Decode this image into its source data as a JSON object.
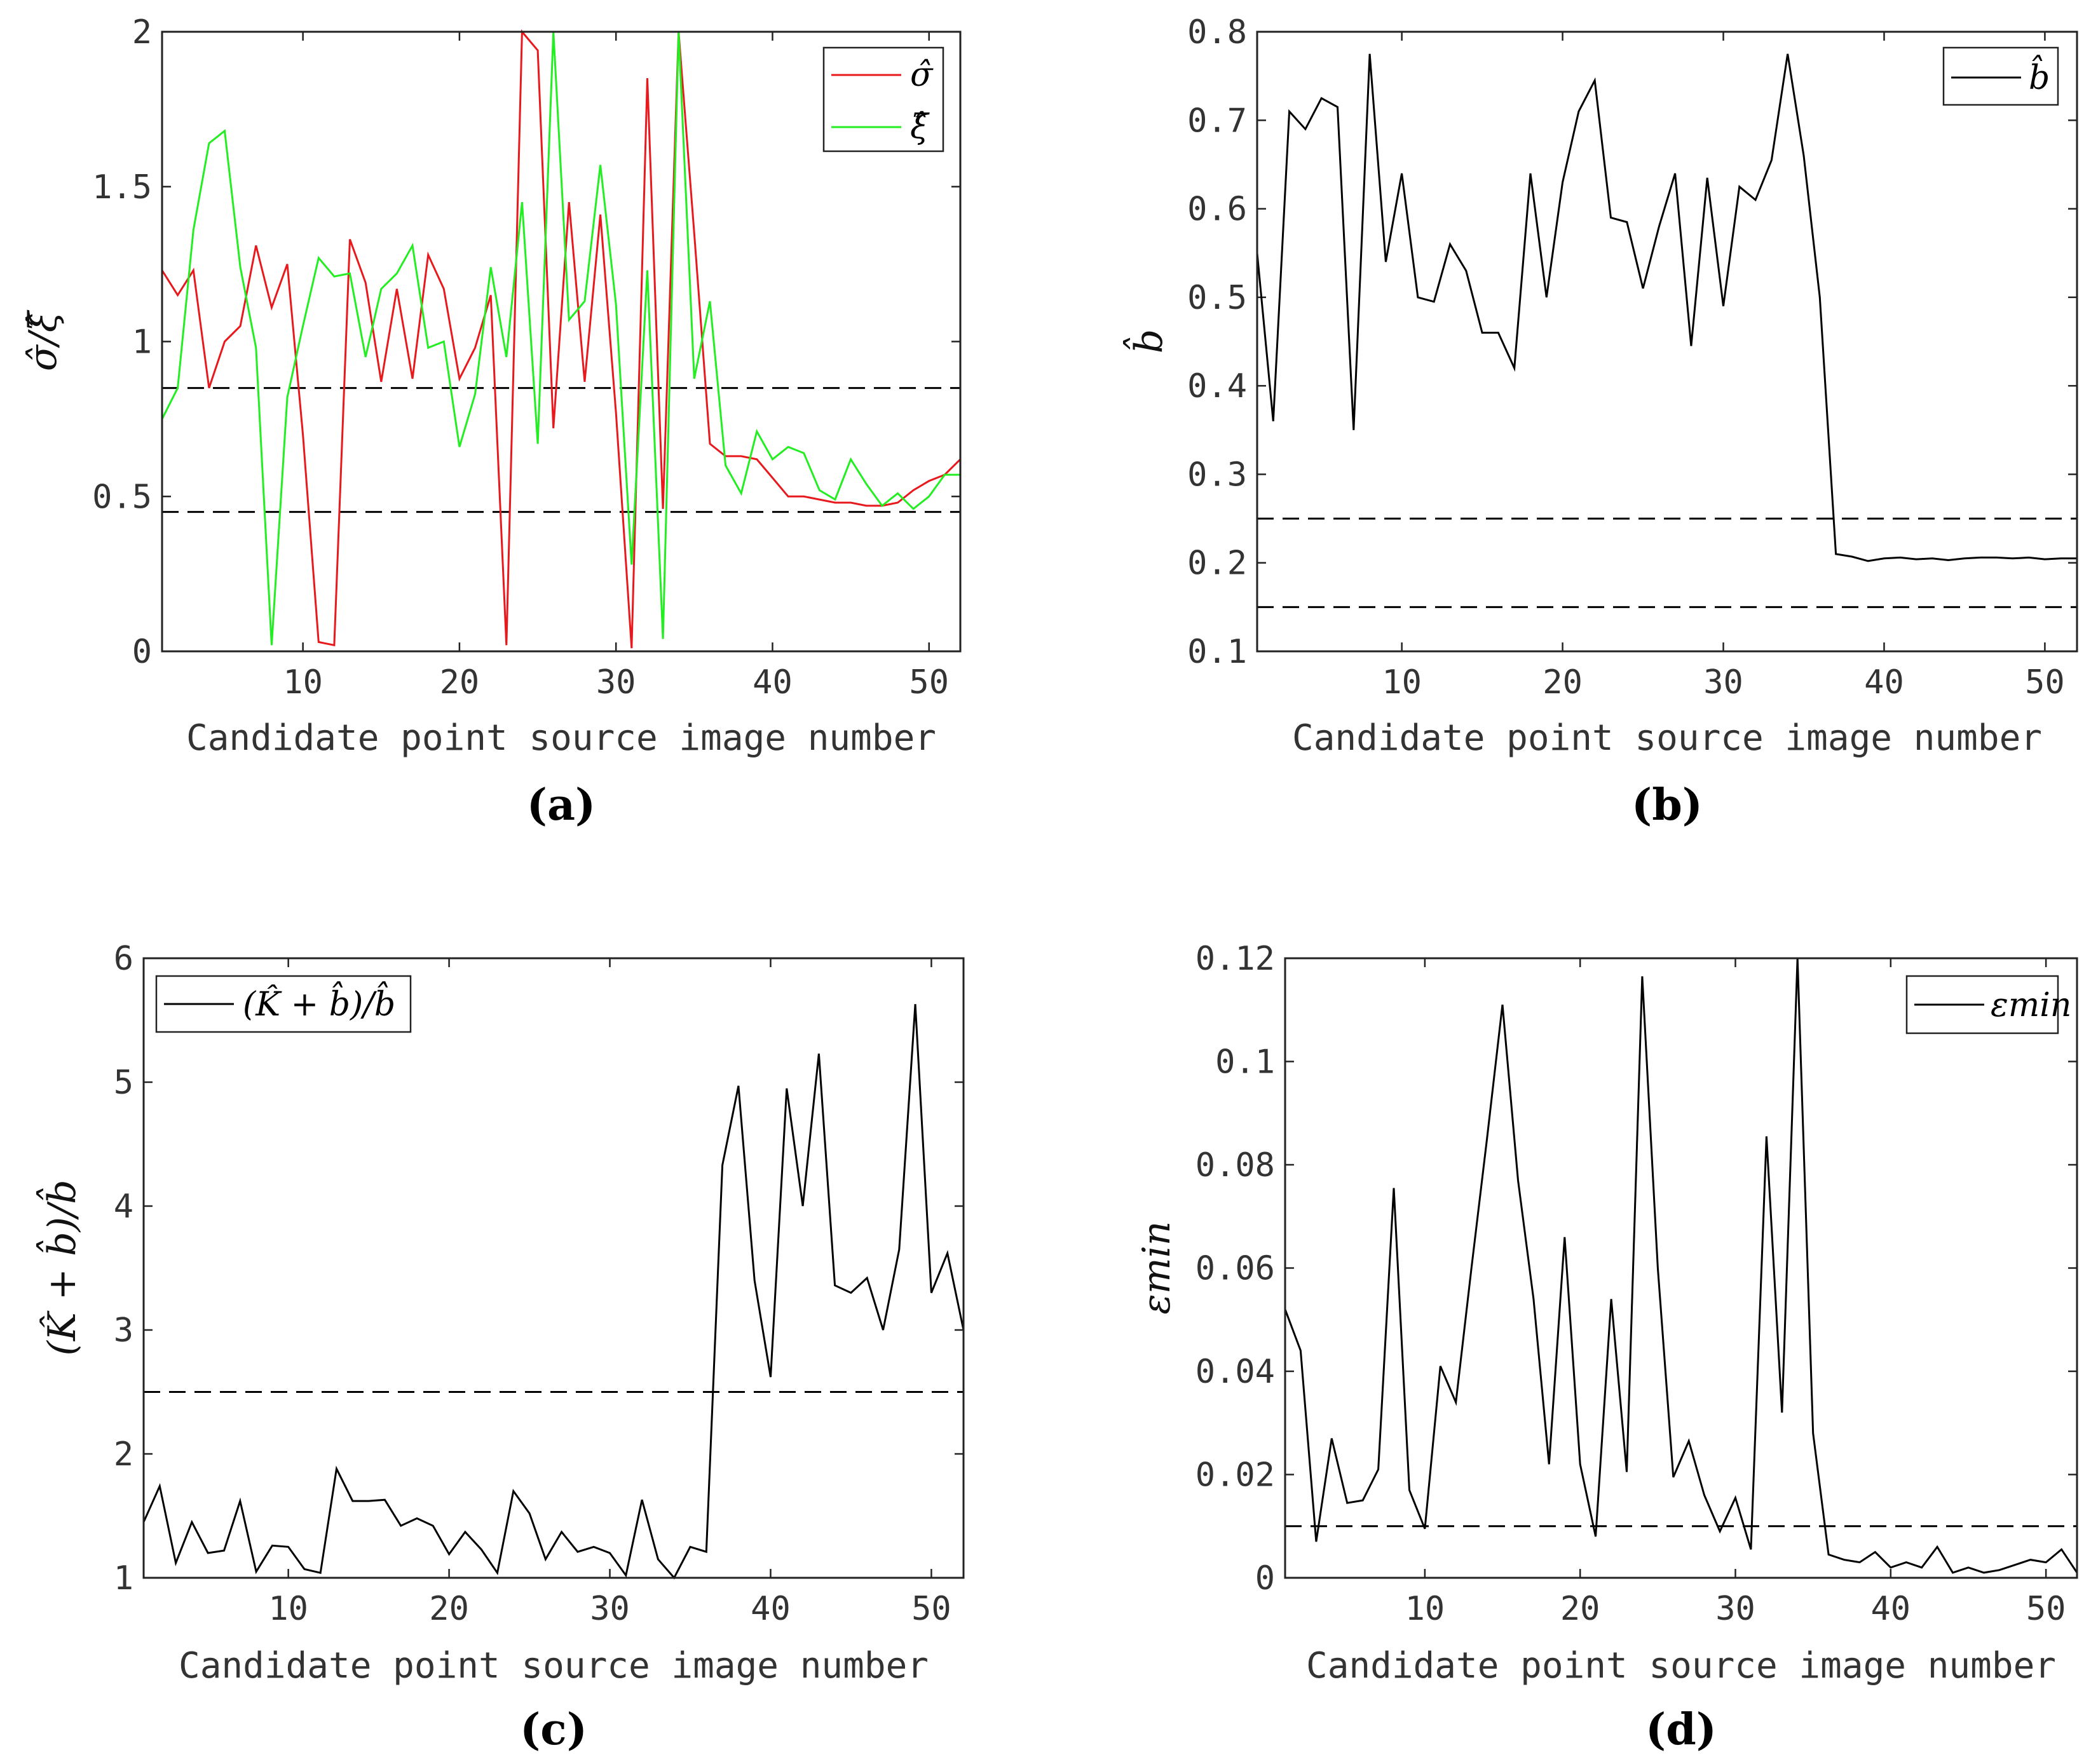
{
  "chart_data": [
    {
      "type": "line",
      "panel_label": "(a)",
      "xlabel": "Candidate point source image number",
      "ylabel": "σ̂/ξ̂",
      "xlim": [
        1,
        52
      ],
      "ylim": [
        0,
        2
      ],
      "xticks": [
        10,
        20,
        30,
        40,
        50
      ],
      "yticks": [
        0,
        0.5,
        1,
        1.5,
        2
      ],
      "ytick_labels": [
        "0",
        "0.5",
        "1",
        "1.5",
        "2"
      ],
      "legend_position": "top-right",
      "thresholds": [
        0.85,
        0.45
      ],
      "series": [
        {
          "name": "σ̂",
          "color": "#e8191d",
          "x": [
            1,
            2,
            3,
            4,
            5,
            6,
            7,
            8,
            9,
            10,
            11,
            12,
            13,
            14,
            15,
            16,
            17,
            18,
            19,
            20,
            21,
            22,
            23,
            24,
            25,
            26,
            27,
            28,
            29,
            30,
            31,
            32,
            33,
            34,
            35,
            36,
            37,
            38,
            39,
            40,
            41,
            42,
            43,
            44,
            45,
            46,
            47,
            48,
            49,
            50,
            51,
            52
          ],
          "values": [
            1.23,
            1.15,
            1.23,
            0.85,
            1.0,
            1.05,
            1.31,
            1.11,
            1.25,
            0.7,
            0.03,
            0.02,
            1.33,
            1.19,
            0.87,
            1.17,
            0.88,
            1.28,
            1.17,
            0.88,
            0.98,
            1.15,
            0.02,
            2.0,
            1.94,
            0.72,
            1.45,
            0.87,
            1.41,
            0.77,
            0.01,
            1.85,
            0.46,
            2.0,
            1.35,
            0.67,
            0.63,
            0.63,
            0.62,
            0.56,
            0.5,
            0.5,
            0.49,
            0.48,
            0.48,
            0.47,
            0.47,
            0.48,
            0.52,
            0.55,
            0.57,
            0.62
          ]
        },
        {
          "name": "ξ̂",
          "color": "#22ee22",
          "x": [
            1,
            2,
            3,
            4,
            5,
            6,
            7,
            8,
            9,
            10,
            11,
            12,
            13,
            14,
            15,
            16,
            17,
            18,
            19,
            20,
            21,
            22,
            23,
            24,
            25,
            26,
            27,
            28,
            29,
            30,
            31,
            32,
            33,
            34,
            35,
            36,
            37,
            38,
            39,
            40,
            41,
            42,
            43,
            44,
            45,
            46,
            47,
            48,
            49,
            50,
            51,
            52
          ],
          "values": [
            0.75,
            0.85,
            1.36,
            1.64,
            1.68,
            1.24,
            0.98,
            0.02,
            0.82,
            1.05,
            1.27,
            1.21,
            1.22,
            0.95,
            1.17,
            1.22,
            1.31,
            0.98,
            1.0,
            0.66,
            0.83,
            1.24,
            0.95,
            1.45,
            0.67,
            2.0,
            1.07,
            1.13,
            1.57,
            1.12,
            0.28,
            1.23,
            0.04,
            2.0,
            0.88,
            1.13,
            0.6,
            0.51,
            0.71,
            0.62,
            0.66,
            0.64,
            0.52,
            0.49,
            0.62,
            0.54,
            0.47,
            0.51,
            0.46,
            0.5,
            0.57,
            0.57
          ]
        }
      ]
    },
    {
      "type": "line",
      "panel_label": "(b)",
      "xlabel": "Candidate point source image number",
      "ylabel": "b̂",
      "xlim": [
        1,
        52
      ],
      "ylim": [
        0.1,
        0.8
      ],
      "xticks": [
        10,
        20,
        30,
        40,
        50
      ],
      "yticks": [
        0.1,
        0.2,
        0.3,
        0.4,
        0.5,
        0.6,
        0.7,
        0.8
      ],
      "ytick_labels": [
        "0.1",
        "0.2",
        "0.3",
        "0.4",
        "0.5",
        "0.6",
        "0.7",
        "0.8"
      ],
      "legend_position": "top-right",
      "thresholds": [
        0.25,
        0.15
      ],
      "series": [
        {
          "name": "b̂",
          "color": "#000000",
          "x": [
            1,
            2,
            3,
            4,
            5,
            6,
            7,
            8,
            9,
            10,
            11,
            12,
            13,
            14,
            15,
            16,
            17,
            18,
            19,
            20,
            21,
            22,
            23,
            24,
            25,
            26,
            27,
            28,
            29,
            30,
            31,
            32,
            33,
            34,
            35,
            36,
            37,
            38,
            39,
            40,
            41,
            42,
            43,
            44,
            45,
            46,
            47,
            48,
            49,
            50,
            51,
            52
          ],
          "values": [
            0.55,
            0.36,
            0.71,
            0.69,
            0.725,
            0.715,
            0.35,
            0.775,
            0.54,
            0.64,
            0.5,
            0.495,
            0.56,
            0.53,
            0.46,
            0.46,
            0.42,
            0.64,
            0.5,
            0.63,
            0.71,
            0.745,
            0.59,
            0.585,
            0.51,
            0.58,
            0.64,
            0.445,
            0.635,
            0.49,
            0.625,
            0.61,
            0.655,
            0.775,
            0.66,
            0.5,
            0.21,
            0.207,
            0.202,
            0.205,
            0.206,
            0.204,
            0.205,
            0.203,
            0.205,
            0.206,
            0.206,
            0.205,
            0.206,
            0.204,
            0.205,
            0.205
          ]
        }
      ]
    },
    {
      "type": "line",
      "panel_label": "(c)",
      "xlabel": "Candidate point source image number",
      "ylabel": "(K̂ + b̂)/b̂",
      "xlim": [
        1,
        52
      ],
      "ylim": [
        1,
        6
      ],
      "xticks": [
        10,
        20,
        30,
        40,
        50
      ],
      "yticks": [
        1,
        2,
        3,
        4,
        5,
        6
      ],
      "ytick_labels": [
        "1",
        "2",
        "3",
        "4",
        "5",
        "6"
      ],
      "legend_position": "top-left",
      "thresholds": [
        2.5
      ],
      "series": [
        {
          "name": "(K̂ + b̂)/b̂",
          "color": "#000000",
          "x": [
            1,
            2,
            3,
            4,
            5,
            6,
            7,
            8,
            9,
            10,
            11,
            12,
            13,
            14,
            15,
            16,
            17,
            18,
            19,
            20,
            21,
            22,
            23,
            24,
            25,
            26,
            27,
            28,
            29,
            30,
            31,
            32,
            33,
            34,
            35,
            36,
            37,
            38,
            39,
            40,
            41,
            42,
            43,
            44,
            45,
            46,
            47,
            48,
            49,
            50,
            51,
            52
          ],
          "values": [
            1.45,
            1.74,
            1.12,
            1.45,
            1.2,
            1.22,
            1.62,
            1.05,
            1.26,
            1.25,
            1.07,
            1.04,
            1.88,
            1.62,
            1.62,
            1.63,
            1.42,
            1.48,
            1.42,
            1.19,
            1.37,
            1.23,
            1.04,
            1.7,
            1.52,
            1.15,
            1.37,
            1.21,
            1.25,
            1.2,
            1.02,
            1.63,
            1.15,
            1.0,
            1.25,
            1.21,
            4.33,
            4.97,
            3.4,
            2.62,
            4.95,
            4.0,
            5.23,
            3.36,
            3.3,
            3.42,
            3.0,
            3.65,
            5.63,
            3.3,
            3.62,
            3.0
          ]
        }
      ]
    },
    {
      "type": "line",
      "panel_label": "(d)",
      "xlabel": "Candidate point source image number",
      "ylabel": "εmin",
      "xlim": [
        1,
        52
      ],
      "ylim": [
        0,
        0.12
      ],
      "xticks": [
        10,
        20,
        30,
        40,
        50
      ],
      "yticks": [
        0,
        0.02,
        0.04,
        0.06,
        0.08,
        0.1,
        0.12
      ],
      "ytick_labels": [
        "0",
        "0.02",
        "0.04",
        "0.06",
        "0.08",
        "0.1",
        "0.12"
      ],
      "legend_position": "top-right",
      "thresholds": [
        0.01
      ],
      "series": [
        {
          "name": "εmin",
          "color": "#000000",
          "x": [
            1,
            2,
            3,
            4,
            5,
            6,
            7,
            8,
            9,
            10,
            11,
            12,
            13,
            14,
            15,
            16,
            17,
            18,
            19,
            20,
            21,
            22,
            23,
            24,
            25,
            26,
            27,
            28,
            29,
            30,
            31,
            32,
            33,
            34,
            35,
            36,
            37,
            38,
            39,
            40,
            41,
            42,
            43,
            44,
            45,
            46,
            47,
            48,
            49,
            50,
            51,
            52
          ],
          "values": [
            0.052,
            0.044,
            0.007,
            0.027,
            0.0145,
            0.015,
            0.021,
            0.0755,
            0.017,
            0.0095,
            0.041,
            0.034,
            0.06,
            0.085,
            0.111,
            0.077,
            0.054,
            0.022,
            0.066,
            0.022,
            0.008,
            0.054,
            0.0205,
            0.1165,
            0.06,
            0.0195,
            0.0265,
            0.016,
            0.009,
            0.0155,
            0.0055,
            0.0855,
            0.032,
            0.12,
            0.028,
            0.0045,
            0.0035,
            0.003,
            0.005,
            0.002,
            0.003,
            0.002,
            0.006,
            0.001,
            0.002,
            0.001,
            0.0015,
            0.0025,
            0.0035,
            0.003,
            0.0055,
            0.001
          ]
        }
      ]
    }
  ]
}
